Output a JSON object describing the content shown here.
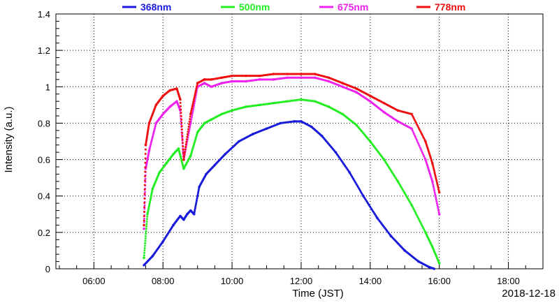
{
  "chart_data": {
    "type": "scatter",
    "title": "",
    "xlabel": "Time (JST)",
    "ylabel": "Intensity (a.u.)",
    "date_label": "2018-12-18",
    "x_unit": "hours (JST)",
    "xlim": [
      4.9,
      19.0
    ],
    "ylim": [
      0,
      1.4
    ],
    "x_ticks": [
      6,
      8,
      10,
      12,
      14,
      16,
      18
    ],
    "x_tick_labels": [
      "06:00",
      "08:00",
      "10:00",
      "12:00",
      "14:00",
      "16:00",
      "18:00"
    ],
    "y_ticks": [
      0,
      0.2,
      0.4,
      0.6,
      0.8,
      1.0,
      1.2,
      1.4
    ],
    "y_tick_labels": [
      "0",
      "0.2",
      "0.4",
      "0.6",
      "0.8",
      "1",
      "1.2",
      "1.4"
    ],
    "grid": true,
    "legend_position": "top",
    "series": [
      {
        "name": "368nm",
        "color": "#1a1adc",
        "x": [
          7.45,
          7.7,
          8.0,
          8.3,
          8.5,
          8.6,
          8.7,
          8.8,
          8.9,
          9.05,
          9.25,
          9.5,
          9.8,
          10.2,
          10.6,
          11.0,
          11.4,
          11.8,
          12.0,
          12.3,
          12.6,
          13.0,
          13.4,
          13.8,
          14.2,
          14.6,
          15.0,
          15.4,
          15.7,
          15.85
        ],
        "y": [
          0.02,
          0.07,
          0.15,
          0.24,
          0.29,
          0.27,
          0.3,
          0.32,
          0.3,
          0.45,
          0.52,
          0.57,
          0.63,
          0.7,
          0.74,
          0.77,
          0.8,
          0.81,
          0.81,
          0.78,
          0.73,
          0.64,
          0.53,
          0.4,
          0.28,
          0.18,
          0.1,
          0.04,
          0.01,
          0.0
        ]
      },
      {
        "name": "500nm",
        "color": "#22ee22",
        "x": [
          7.45,
          7.55,
          7.7,
          7.9,
          8.1,
          8.3,
          8.45,
          8.6,
          8.8,
          9.0,
          9.2,
          9.4,
          9.7,
          10.0,
          10.4,
          10.8,
          11.2,
          11.6,
          12.0,
          12.4,
          12.8,
          13.2,
          13.6,
          14.0,
          14.4,
          14.8,
          15.2,
          15.6,
          15.8,
          16.0
        ],
        "y": [
          0.06,
          0.3,
          0.44,
          0.53,
          0.58,
          0.63,
          0.66,
          0.55,
          0.62,
          0.75,
          0.8,
          0.82,
          0.85,
          0.87,
          0.89,
          0.9,
          0.91,
          0.92,
          0.93,
          0.92,
          0.89,
          0.85,
          0.79,
          0.7,
          0.6,
          0.48,
          0.35,
          0.2,
          0.12,
          0.03
        ]
      },
      {
        "name": "675nm",
        "color": "#ee22ee",
        "x": [
          7.45,
          7.5,
          7.6,
          7.8,
          8.0,
          8.2,
          8.4,
          8.5,
          8.6,
          8.8,
          9.0,
          9.2,
          9.4,
          9.7,
          10.0,
          10.4,
          10.8,
          11.2,
          11.6,
          12.0,
          12.4,
          12.8,
          13.2,
          13.6,
          14.0,
          14.4,
          14.8,
          15.2,
          15.6,
          15.8,
          16.0
        ],
        "y": [
          0.22,
          0.55,
          0.65,
          0.8,
          0.85,
          0.89,
          0.92,
          0.87,
          0.6,
          0.8,
          1.0,
          1.02,
          1.0,
          1.02,
          1.03,
          1.03,
          1.04,
          1.04,
          1.05,
          1.05,
          1.05,
          1.03,
          1.0,
          0.97,
          0.92,
          0.86,
          0.81,
          0.77,
          0.6,
          0.48,
          0.3
        ]
      },
      {
        "name": "778nm",
        "color": "#ee1111",
        "x": [
          7.45,
          7.5,
          7.6,
          7.8,
          8.0,
          8.2,
          8.4,
          8.5,
          8.6,
          8.8,
          9.0,
          9.2,
          9.4,
          9.7,
          10.0,
          10.4,
          10.8,
          11.2,
          11.6,
          12.0,
          12.4,
          12.8,
          13.2,
          13.6,
          14.0,
          14.4,
          14.8,
          15.2,
          15.6,
          15.8,
          16.0
        ],
        "y": [
          0.24,
          0.68,
          0.8,
          0.9,
          0.95,
          0.98,
          0.99,
          0.93,
          0.6,
          0.85,
          1.02,
          1.04,
          1.04,
          1.05,
          1.06,
          1.06,
          1.06,
          1.07,
          1.07,
          1.07,
          1.07,
          1.05,
          1.02,
          0.99,
          0.95,
          0.91,
          0.87,
          0.85,
          0.7,
          0.58,
          0.42
        ]
      }
    ]
  }
}
